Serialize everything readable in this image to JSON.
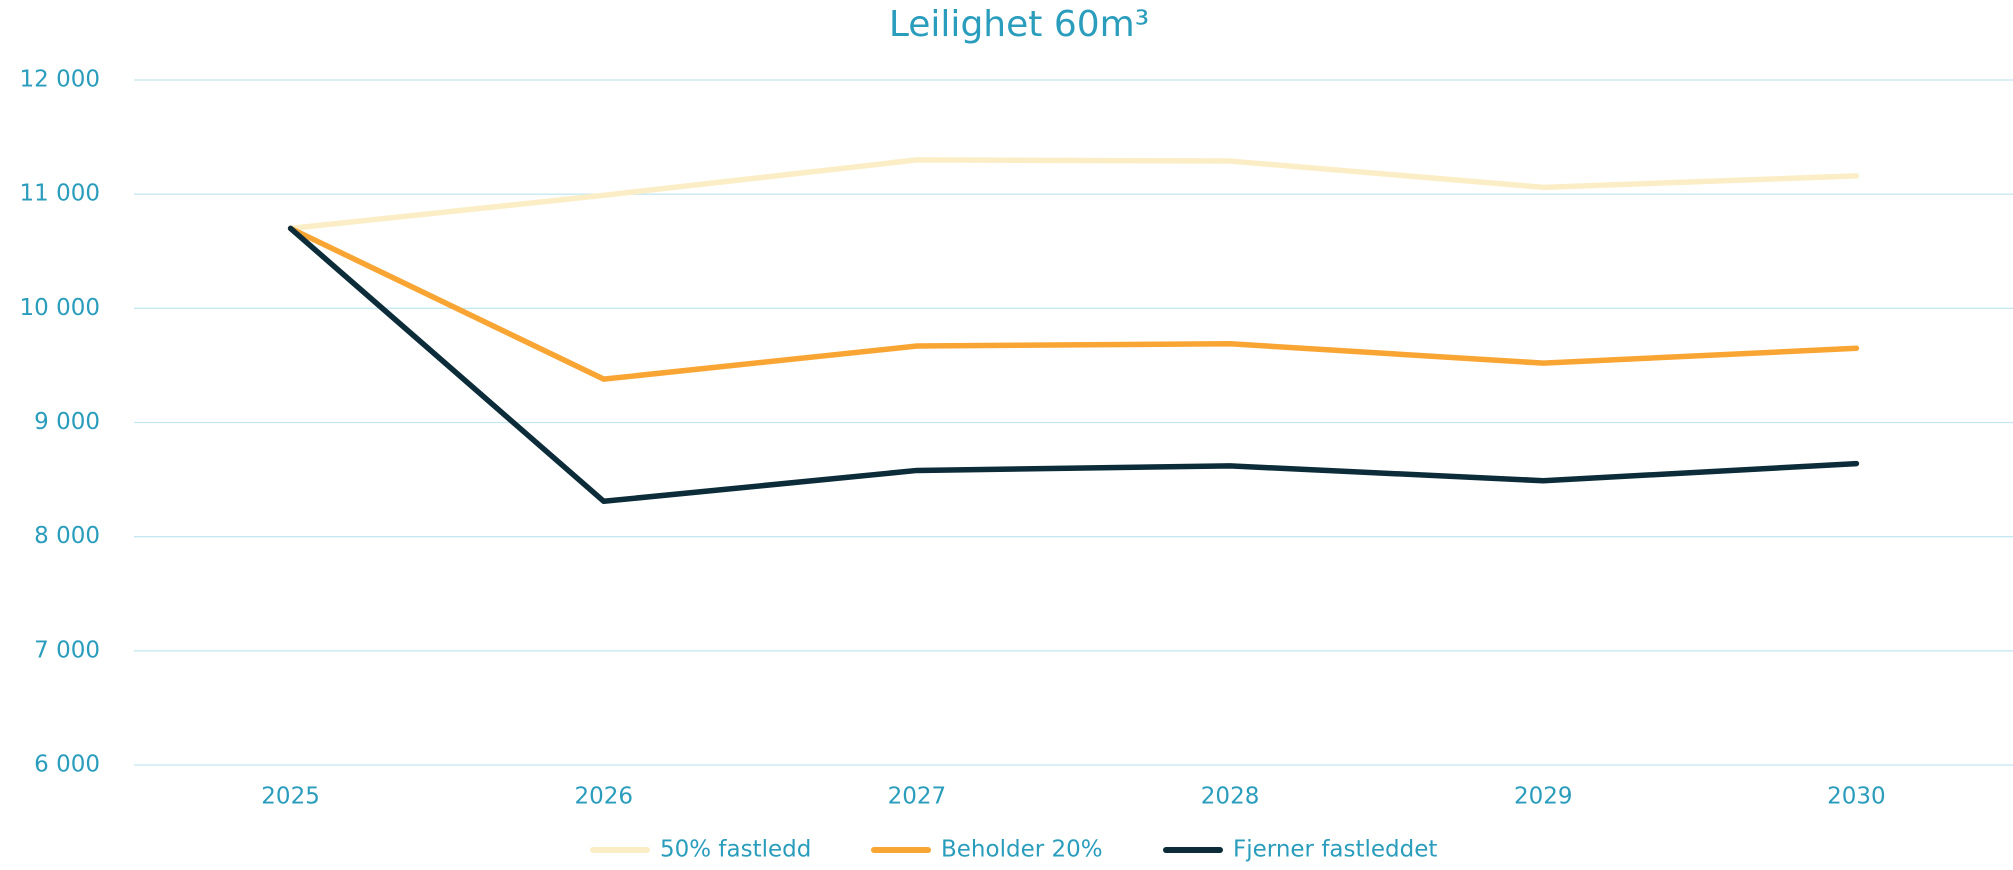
{
  "chart_data": {
    "type": "line",
    "title": "Leilighet 60m³",
    "categories": [
      "2025",
      "2026",
      "2027",
      "2028",
      "2029",
      "2030"
    ],
    "series": [
      {
        "name": "50% fastledd",
        "color": "#fbeec6",
        "values": [
          10700,
          10990,
          11300,
          11290,
          11060,
          11160
        ]
      },
      {
        "name": "Beholder 20%",
        "color": "#f9a533",
        "values": [
          10700,
          9380,
          9670,
          9690,
          9520,
          9650
        ]
      },
      {
        "name": "Fjerner fastleddet",
        "color": "#0d2c3a",
        "values": [
          10700,
          8310,
          8580,
          8620,
          8490,
          8640
        ]
      }
    ],
    "ylim": [
      6000,
      12000
    ],
    "yticks": [
      {
        "value": 6000,
        "label": "6 000"
      },
      {
        "value": 7000,
        "label": "7 000"
      },
      {
        "value": 8000,
        "label": "8 000"
      },
      {
        "value": 9000,
        "label": "9 000"
      },
      {
        "value": 10000,
        "label": "10 000"
      },
      {
        "value": 11000,
        "label": "11 000"
      },
      {
        "value": 12000,
        "label": "12 000"
      }
    ],
    "grid": true,
    "legend": "bottom"
  }
}
